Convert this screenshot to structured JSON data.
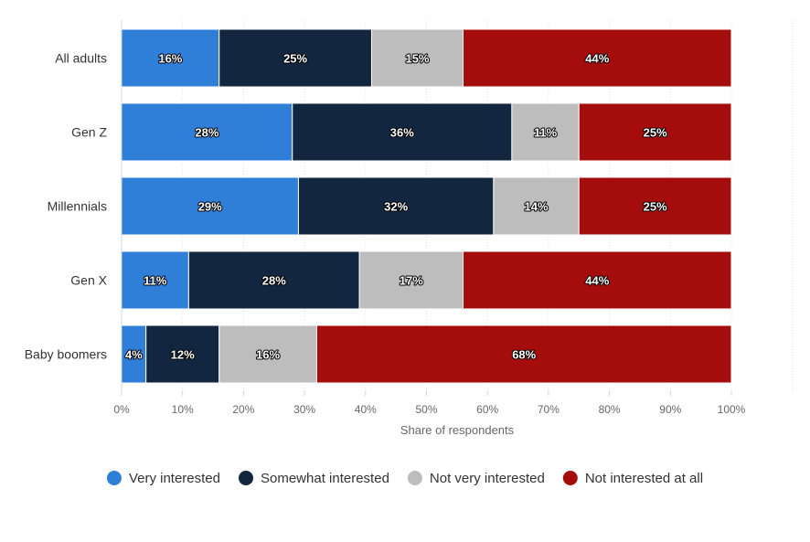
{
  "chart_data": {
    "type": "bar",
    "orientation": "horizontal",
    "stacked": true,
    "categories": [
      "All adults",
      "Gen Z",
      "Millennials",
      "Gen X",
      "Baby boomers"
    ],
    "series": [
      {
        "name": "Very interested",
        "color": "#2f7ed8",
        "values": [
          16,
          28,
          29,
          11,
          4
        ]
      },
      {
        "name": "Somewhat interested",
        "color": "#12263f",
        "values": [
          25,
          36,
          32,
          28,
          12
        ]
      },
      {
        "name": "Not very interested",
        "color": "#bdbdbd",
        "values": [
          15,
          11,
          14,
          17,
          16
        ]
      },
      {
        "name": "Not interested at all",
        "color": "#a50d0d",
        "values": [
          44,
          25,
          25,
          44,
          68
        ]
      }
    ],
    "xlabel": "Share of respondents",
    "ylabel": "",
    "xlim": [
      0,
      100
    ],
    "xticks": [
      "0%",
      "10%",
      "20%",
      "30%",
      "40%",
      "50%",
      "60%",
      "70%",
      "80%",
      "90%",
      "100%"
    ],
    "grid": true,
    "legend_position": "bottom",
    "value_label_suffix": "%"
  }
}
